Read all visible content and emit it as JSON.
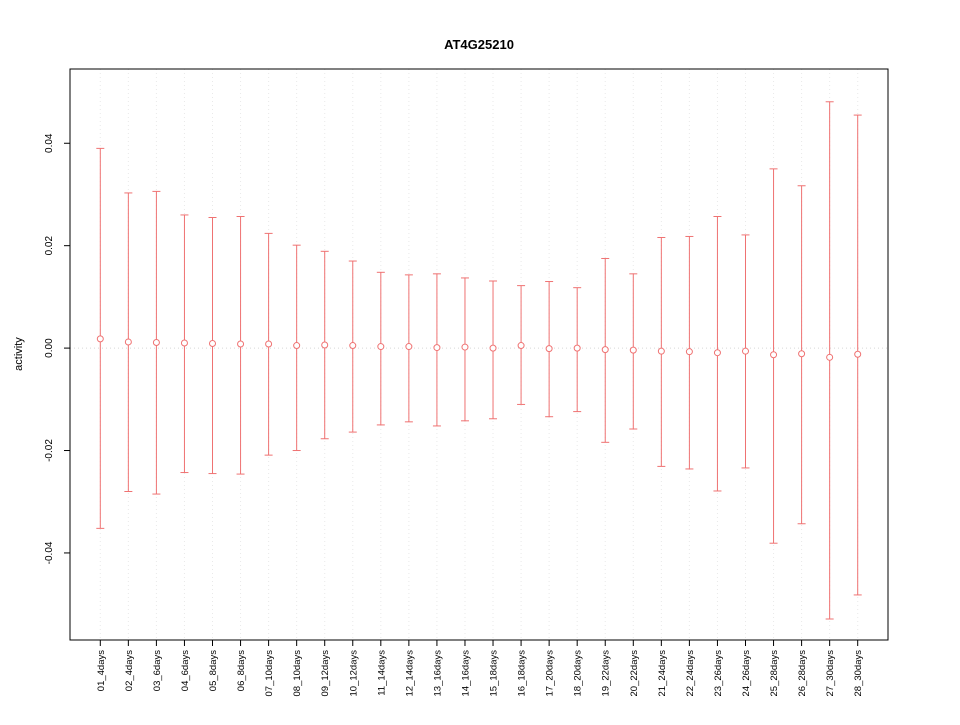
{
  "chart_data": {
    "type": "errorbar",
    "title": "AT4G25210",
    "xlabel": "",
    "ylabel": "activity",
    "categories": [
      "01_4days",
      "02_4days",
      "03_6days",
      "04_6days",
      "05_8days",
      "06_8days",
      "07_10days",
      "08_10days",
      "09_12days",
      "10_12days",
      "11_14days",
      "12_14days",
      "13_16days",
      "14_16days",
      "15_18days",
      "16_18days",
      "17_20days",
      "18_20days",
      "19_22days",
      "20_22days",
      "21_24days",
      "22_24days",
      "23_26days",
      "24_26days",
      "25_28days",
      "26_28days",
      "27_30days",
      "28_30days"
    ],
    "series": [
      {
        "name": "activity",
        "center": [
          0.0018,
          0.0012,
          0.0011,
          0.001,
          0.0009,
          0.0008,
          0.0008,
          0.0005,
          0.0006,
          0.0005,
          0.0003,
          0.0003,
          0.0001,
          0.0002,
          0.0,
          0.0005,
          -0.0001,
          0.0,
          -0.0003,
          -0.0004,
          -0.0006,
          -0.0007,
          -0.0009,
          -0.0006,
          -0.0013,
          -0.0011,
          -0.0018,
          -0.0012
        ],
        "upper": [
          0.039,
          0.0303,
          0.0306,
          0.026,
          0.0255,
          0.0257,
          0.0224,
          0.0201,
          0.0189,
          0.017,
          0.0148,
          0.0143,
          0.0145,
          0.0137,
          0.0131,
          0.0122,
          0.013,
          0.0118,
          0.0175,
          0.0145,
          0.0216,
          0.0218,
          0.0257,
          0.0221,
          0.035,
          0.0317,
          0.0481,
          0.0455
        ],
        "lower": [
          -0.0352,
          -0.028,
          -0.0285,
          -0.0243,
          -0.0245,
          -0.0246,
          -0.0209,
          -0.02,
          -0.0177,
          -0.0164,
          -0.015,
          -0.0144,
          -0.0152,
          -0.0142,
          -0.0138,
          -0.011,
          -0.0134,
          -0.0124,
          -0.0184,
          -0.0158,
          -0.0231,
          -0.0236,
          -0.0279,
          -0.0234,
          -0.0381,
          -0.0343,
          -0.0529,
          -0.0482
        ]
      }
    ],
    "ylim": [
      -0.057,
      0.0545
    ],
    "yticks": [
      -0.04,
      -0.02,
      0,
      0.02,
      0.04
    ],
    "ytick_labels": [
      "-0.04",
      "-0.02",
      "0.00",
      "0.02",
      "0.04"
    ],
    "grid": "dotted vertical line per category, dotted horizontal line at y=0",
    "legend": "none",
    "colors": {
      "series": "#ef7272",
      "grid": "#e9e9e9",
      "zero_line": "#d8d8d8",
      "axis": "#000000",
      "background": "#ffffff"
    }
  }
}
